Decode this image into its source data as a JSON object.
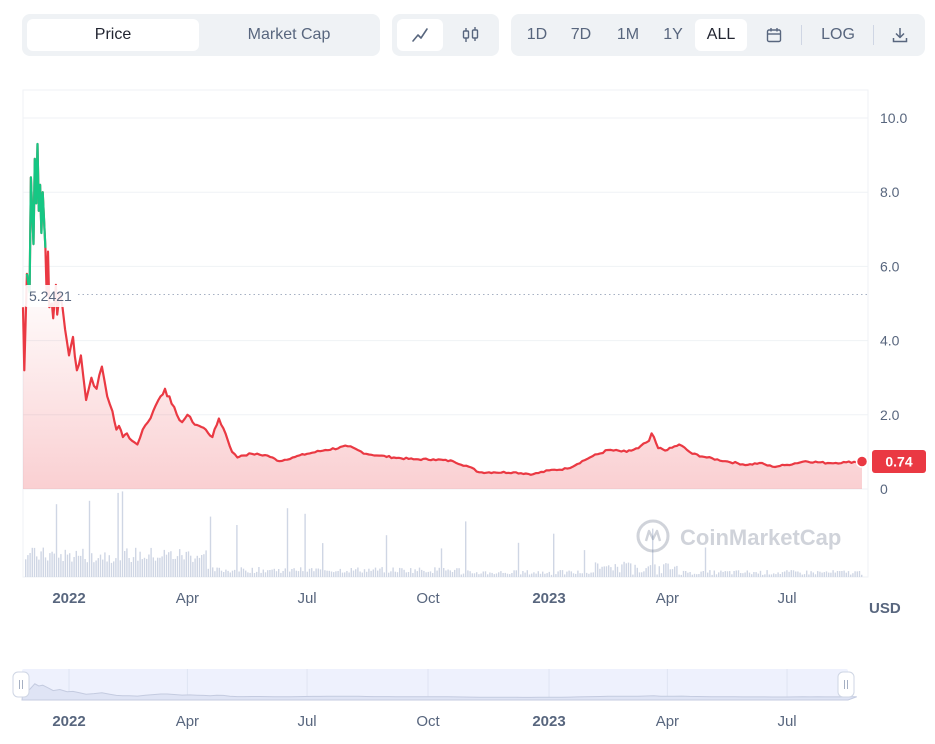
{
  "toolbar": {
    "metric_tabs": [
      "Price",
      "Market Cap"
    ],
    "active_metric": "Price",
    "chart_type_icons": [
      "line-chart-icon",
      "candlestick-icon"
    ],
    "active_chart_type": "line-chart-icon",
    "ranges": [
      "1D",
      "7D",
      "1M",
      "1Y",
      "ALL"
    ],
    "active_range": "ALL",
    "calendar_icon": "calendar-icon",
    "log_label": "LOG",
    "download_icon": "download-icon"
  },
  "watermark": "CoinMarketCap",
  "currency_label": "USD",
  "colors": {
    "up": "#16c784",
    "down": "#ea3943",
    "accent": "#ea3943"
  },
  "chart_data": {
    "type": "line",
    "title": "",
    "xlabel": "",
    "ylabel": "",
    "ylim": [
      0,
      10
    ],
    "yticks": [
      "10.0",
      "8.0",
      "6.0",
      "4.0",
      "2.0",
      "0"
    ],
    "xticks": [
      "2022",
      "Apr",
      "Jul",
      "Oct",
      "2023",
      "Apr",
      "Jul"
    ],
    "x_range": [
      "2021-11-27",
      "2023-08-27"
    ],
    "reference_value": "5.2421",
    "current_value": "0.74",
    "grid": true,
    "series": [
      {
        "x": [
          "2021-11-27",
          "2021-11-28",
          "2021-11-30",
          "2021-12-02",
          "2021-12-03",
          "2021-12-05",
          "2021-12-06",
          "2021-12-07",
          "2021-12-08",
          "2021-12-09",
          "2021-12-10",
          "2021-12-11",
          "2021-12-12",
          "2021-12-14",
          "2021-12-15",
          "2021-12-16",
          "2021-12-17",
          "2021-12-19",
          "2021-12-20",
          "2021-12-22",
          "2021-12-23",
          "2021-12-25",
          "2021-12-27",
          "2021-12-29",
          "2022-01-01",
          "2022-01-04",
          "2022-01-07",
          "2022-01-10",
          "2022-01-14",
          "2022-01-18",
          "2022-01-22",
          "2022-01-26",
          "2022-01-30",
          "2022-02-03",
          "2022-02-06",
          "2022-02-08",
          "2022-02-11",
          "2022-02-14",
          "2022-02-18",
          "2022-02-22",
          "2022-02-26",
          "2022-03-02",
          "2022-03-06",
          "2022-03-10",
          "2022-03-15",
          "2022-03-20",
          "2022-03-24",
          "2022-03-28",
          "2022-04-01",
          "2022-04-05",
          "2022-04-10",
          "2022-04-15",
          "2022-04-20",
          "2022-04-25",
          "2022-04-30",
          "2022-05-05",
          "2022-05-09",
          "2022-05-12",
          "2022-05-20",
          "2022-06-01",
          "2022-06-10",
          "2022-06-20",
          "2022-07-01",
          "2022-07-15",
          "2022-08-01",
          "2022-08-15",
          "2022-08-25",
          "2022-09-05",
          "2022-09-20",
          "2022-10-05",
          "2022-10-20",
          "2022-11-01",
          "2022-11-09",
          "2022-11-20",
          "2022-12-05",
          "2022-12-20",
          "2023-01-01",
          "2023-01-15",
          "2023-02-01",
          "2023-02-15",
          "2023-03-01",
          "2023-03-10",
          "2023-03-18",
          "2023-03-20",
          "2023-03-25",
          "2023-04-01",
          "2023-04-10",
          "2023-04-20",
          "2023-05-01",
          "2023-05-15",
          "2023-06-01",
          "2023-06-10",
          "2023-06-20",
          "2023-07-01",
          "2023-07-15",
          "2023-08-01",
          "2023-08-15",
          "2023-08-27"
        ],
        "y": [
          4.9,
          3.2,
          5.8,
          5.3,
          8.4,
          6.6,
          8.9,
          7.7,
          9.3,
          7.5,
          8.2,
          6.9,
          8.0,
          6.5,
          5.2,
          6.4,
          4.9,
          5.0,
          4.6,
          5.5,
          4.7,
          5.3,
          4.9,
          4.3,
          3.6,
          4.1,
          3.2,
          3.6,
          2.4,
          3.0,
          2.7,
          3.3,
          2.5,
          2.1,
          1.6,
          1.7,
          1.4,
          1.5,
          1.3,
          1.2,
          1.6,
          1.8,
          2.1,
          2.4,
          2.7,
          2.3,
          2.0,
          1.8,
          2.0,
          1.8,
          1.7,
          1.6,
          1.4,
          1.9,
          1.5,
          1.0,
          0.85,
          0.9,
          0.95,
          0.9,
          0.75,
          0.85,
          0.95,
          1.05,
          1.15,
          0.95,
          0.9,
          0.85,
          0.8,
          0.8,
          0.75,
          0.6,
          0.45,
          0.45,
          0.45,
          0.4,
          0.5,
          0.55,
          0.85,
          1.05,
          1.0,
          1.1,
          1.3,
          1.5,
          1.1,
          1.05,
          1.2,
          0.95,
          0.85,
          0.75,
          0.65,
          0.7,
          0.6,
          0.65,
          0.75,
          0.7,
          0.72,
          0.74
        ]
      }
    ]
  },
  "navigator": {
    "xticks": [
      "2022",
      "Apr",
      "Jul",
      "Oct",
      "2023",
      "Apr",
      "Jul"
    ]
  }
}
